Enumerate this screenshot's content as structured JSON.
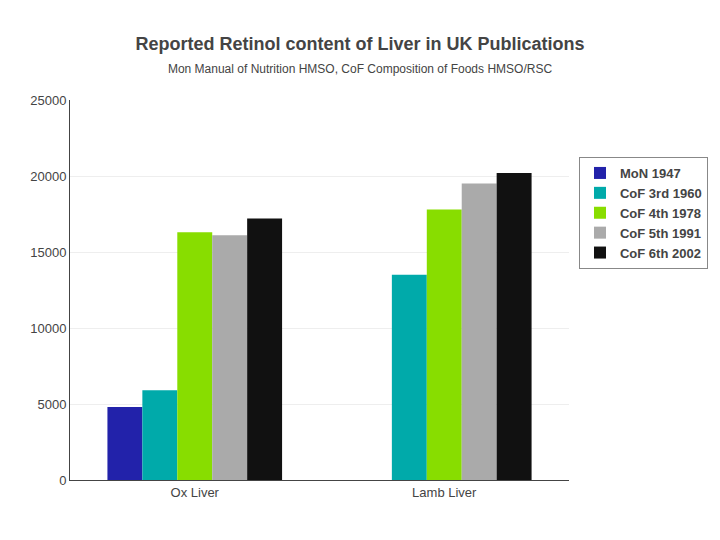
{
  "chart_data": {
    "type": "bar",
    "title": "Reported Retinol content of Liver in UK Publications",
    "subtitle": "Mon Manual of Nutrition HMSO, CoF Composition of Foods HMSO/RSC",
    "categories": [
      "Ox Liver",
      "Lamb Liver"
    ],
    "series": [
      {
        "name": "MoN 1947",
        "color": "#2222AA",
        "values": [
          4800,
          0
        ]
      },
      {
        "name": "CoF 3rd 1960",
        "color": "#00AAAA",
        "values": [
          5900,
          13500
        ]
      },
      {
        "name": "CoF 4th 1978",
        "color": "#88DD00",
        "values": [
          16300,
          17800
        ]
      },
      {
        "name": "CoF 5th 1991",
        "color": "#AAAAAA",
        "values": [
          16100,
          19500
        ]
      },
      {
        "name": "CoF 6th 2002",
        "color": "#111111",
        "values": [
          17200,
          20200
        ]
      }
    ],
    "ylim": [
      0,
      25000
    ],
    "yticks": [
      0,
      5000,
      10000,
      15000,
      20000,
      25000
    ],
    "grid": true,
    "legend": "right"
  }
}
